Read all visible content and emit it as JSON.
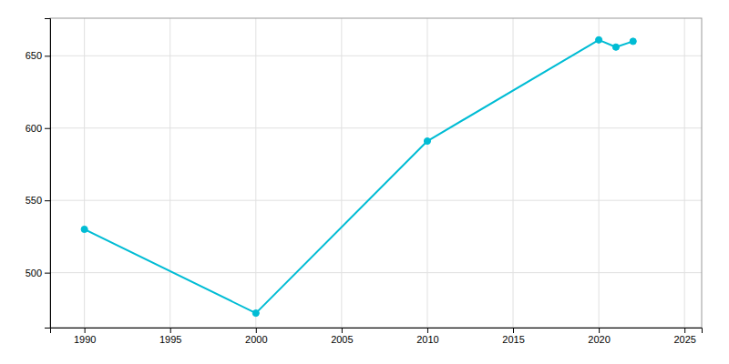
{
  "chart_data": {
    "type": "line",
    "x": [
      1990,
      2000,
      2010,
      2020,
      2021,
      2022
    ],
    "values": [
      530,
      472,
      591,
      661,
      656,
      660
    ],
    "color": "#00bcd4",
    "marker": "circle",
    "xlim": [
      1988,
      2026
    ],
    "ylim": [
      462,
      676
    ],
    "xticks": [
      1990,
      1995,
      2000,
      2005,
      2010,
      2015,
      2020,
      2025
    ],
    "yticks": [
      500,
      550,
      600,
      650
    ],
    "grid": true
  }
}
